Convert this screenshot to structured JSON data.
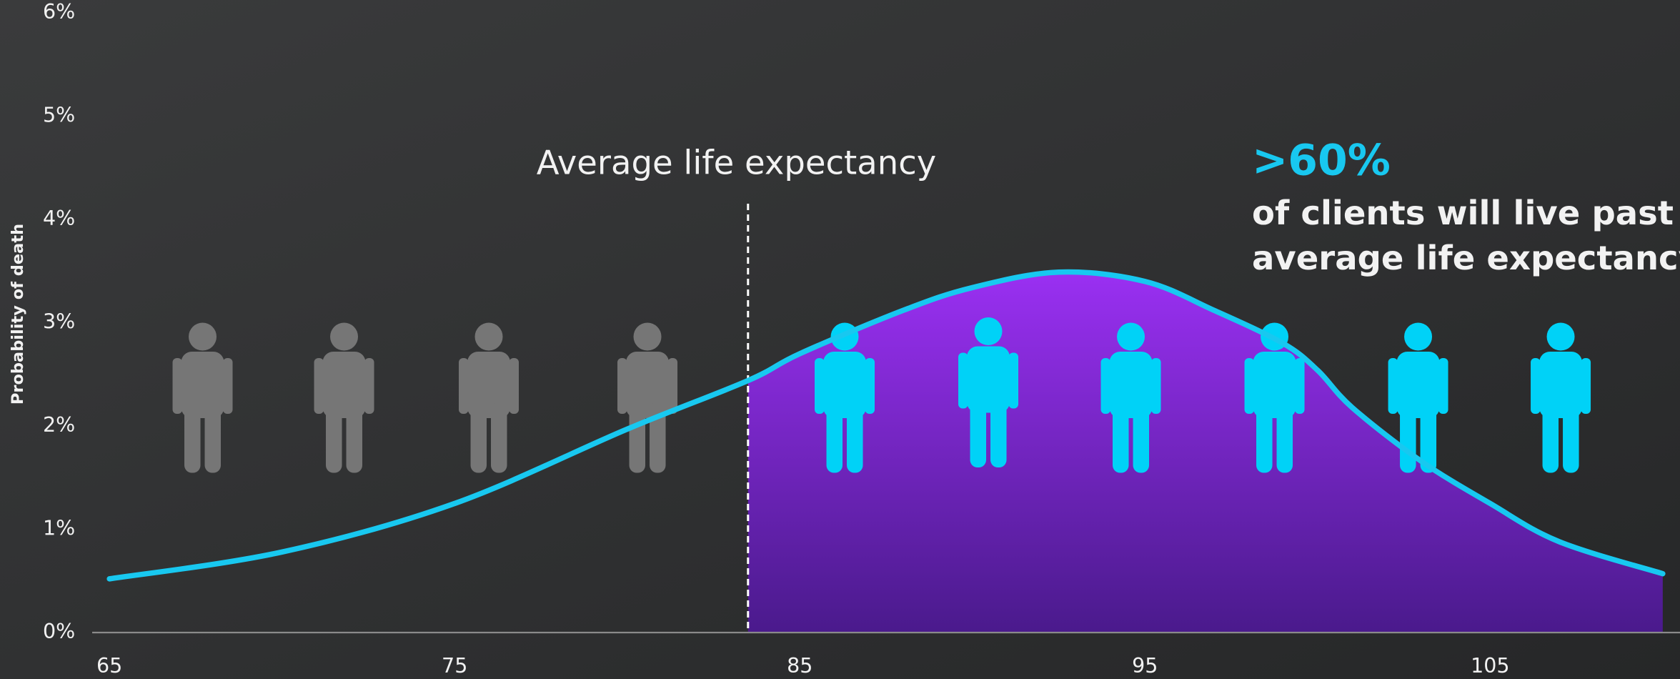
{
  "chart_data": {
    "type": "line",
    "y_label": "Probability of death",
    "annotation": {
      "text": "Average life expectancy",
      "x": 83.5
    },
    "callout": {
      "highlight": ">60%",
      "lines": [
        "of clients will live past",
        "average life expectancy"
      ]
    },
    "x": [
      65,
      70,
      75,
      80,
      83.5,
      85,
      88,
      90,
      92.5,
      95,
      97,
      99,
      100,
      101,
      103,
      105,
      107,
      110
    ],
    "series": [
      {
        "color": "#18c8f0",
        "values": [
          0.52,
          0.78,
          1.25,
          1.97,
          2.44,
          2.7,
          3.12,
          3.34,
          3.49,
          3.4,
          3.12,
          2.8,
          2.54,
          2.18,
          1.66,
          1.25,
          0.88,
          0.57
        ]
      }
    ],
    "fill_from": 83.5,
    "xlim": [
      64.5,
      110.5
    ],
    "xticks": [
      65,
      75,
      85,
      95,
      105
    ],
    "ylim": [
      0,
      6
    ],
    "yticks": [
      {
        "value": 0,
        "label": "0%"
      },
      {
        "value": 1,
        "label": "1%"
      },
      {
        "value": 2,
        "label": "2%"
      },
      {
        "value": 3,
        "label": "3%"
      },
      {
        "value": 4,
        "label": "4%"
      },
      {
        "value": 5,
        "label": "5%"
      },
      {
        "value": 6,
        "label": "6%"
      }
    ]
  }
}
